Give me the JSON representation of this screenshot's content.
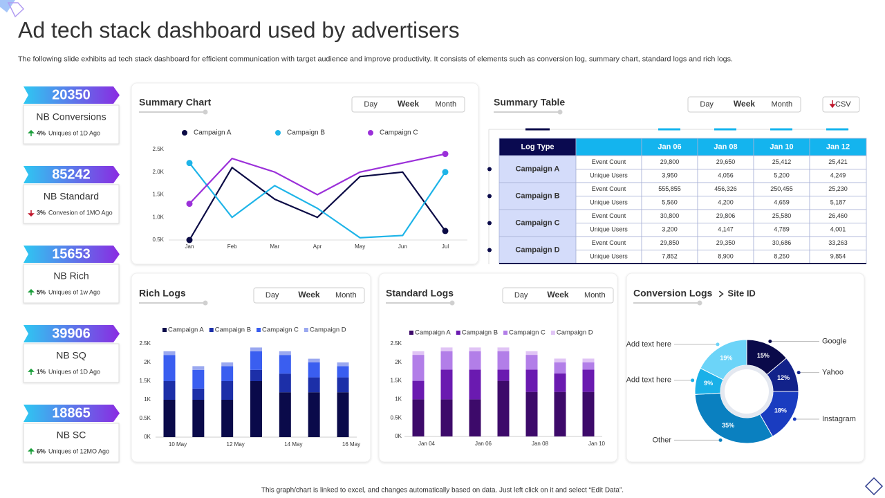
{
  "header": {
    "title": "Ad tech stack dashboard used by advertisers",
    "subtitle": "The following slide exhibits ad tech stack dashboard for efficient communication with target audience and improve productivity. It consists of elements such as conversion log, summary chart, standard logs and rich logs."
  },
  "kpis": [
    {
      "value": 20350,
      "label": "NB Conversions",
      "change": "4%",
      "note": "Uniques of 1D Ago",
      "trend": "up"
    },
    {
      "value": 85242,
      "label": "NB Standard",
      "change": "3%",
      "note": "Convesion of 1MO Ago",
      "trend": "down"
    },
    {
      "value": 15653,
      "label": "NB Rich",
      "change": "5%",
      "note": "Uniques of 1w Ago",
      "trend": "up"
    },
    {
      "value": 39906,
      "label": "NB SQ",
      "change": "1%",
      "note": "Uniques of 1D Ago",
      "trend": "up"
    },
    {
      "value": 18865,
      "label": "NB SC",
      "change": "6%",
      "note": "Uniques of 12MO Ago",
      "trend": "up"
    }
  ],
  "chart_data": [
    {
      "type": "line",
      "title": "Summary Chart",
      "toggle": [
        "Day",
        "Week",
        "Month"
      ],
      "categories": [
        "Jan",
        "Feb",
        "Mar",
        "Apr",
        "May",
        "Jun",
        "Jul"
      ],
      "series": [
        {
          "name": "Campaign A",
          "color": "#0b0b45",
          "values": [
            0.5,
            2.1,
            1.4,
            1.0,
            1.9,
            2.0,
            0.7
          ]
        },
        {
          "name": "Campaign B",
          "color": "#1eb4e8",
          "values": [
            2.2,
            1.0,
            1.7,
            1.2,
            0.55,
            0.6,
            2.0
          ]
        },
        {
          "name": "Campaign C",
          "color": "#9b30d9",
          "values": [
            1.3,
            2.3,
            2.0,
            1.5,
            2.0,
            2.2,
            2.4
          ]
        }
      ],
      "ylim": [
        0.5,
        2.5
      ],
      "yticks": [
        {
          "value": 0.5,
          "label": "0.5K"
        },
        {
          "value": 1.0,
          "label": "1.0K"
        },
        {
          "value": 1.5,
          "label": "1.5K"
        },
        {
          "value": 2.0,
          "label": "2.0K"
        },
        {
          "value": 2.5,
          "label": "2.5K"
        }
      ]
    },
    {
      "type": "stacked_bar",
      "title": "Rich Logs",
      "toggle": [
        "Day",
        "Week",
        "Month"
      ],
      "categories": [
        "10 May",
        null,
        "12 May",
        null,
        "14 May",
        null,
        "16 May"
      ],
      "series": [
        {
          "name": "Campaign  A",
          "color": "#0a0a4a",
          "values": [
            1.0,
            1.0,
            1.0,
            1.5,
            1.2,
            1.2,
            1.2
          ]
        },
        {
          "name": "Campaign  B",
          "color": "#1c2fa8",
          "values": [
            0.5,
            0.3,
            0.5,
            0.3,
            0.5,
            0.4,
            0.4
          ]
        },
        {
          "name": "Campaign C",
          "color": "#3a5ef0",
          "values": [
            0.7,
            0.5,
            0.4,
            0.5,
            0.5,
            0.4,
            0.3
          ]
        },
        {
          "name": "Campaign D",
          "color": "#9aa8f0",
          "values": [
            0.1,
            0.1,
            0.1,
            0.1,
            0.1,
            0.1,
            0.1
          ]
        }
      ],
      "ylim": [
        0,
        2.5
      ],
      "yticks": [
        {
          "value": 0,
          "label": "0K"
        },
        {
          "value": 0.5,
          "label": "0.5K"
        },
        {
          "value": 1,
          "label": "1K"
        },
        {
          "value": 1.5,
          "label": "1.5K"
        },
        {
          "value": 2,
          "label": "2K"
        },
        {
          "value": 2.5,
          "label": "2.5K"
        }
      ]
    },
    {
      "type": "stacked_bar",
      "title": "Standard Logs",
      "toggle": [
        "Day",
        "Week",
        "Month"
      ],
      "categories": [
        "Jan 04",
        null,
        "Jan 06",
        null,
        "Jan 08",
        null,
        "Jan 10"
      ],
      "series": [
        {
          "name": "Campaign  A",
          "color": "#3d0a6a",
          "values": [
            1.0,
            1.0,
            1.0,
            1.5,
            1.2,
            1.2,
            1.2
          ]
        },
        {
          "name": "Campaign  B",
          "color": "#6a1ab0",
          "values": [
            0.5,
            0.8,
            0.8,
            0.3,
            0.6,
            0.5,
            0.6
          ]
        },
        {
          "name": "Campaign C",
          "color": "#b27ee8",
          "values": [
            0.7,
            0.5,
            0.5,
            0.5,
            0.4,
            0.3,
            0.2
          ]
        },
        {
          "name": "Campaign D",
          "color": "#e0c4f5",
          "values": [
            0.1,
            0.1,
            0.1,
            0.1,
            0.1,
            0.1,
            0.1
          ]
        }
      ],
      "ylim": [
        0,
        2.5
      ],
      "yticks": [
        {
          "value": 0,
          "label": "0K"
        },
        {
          "value": 0.5,
          "label": "0.5K"
        },
        {
          "value": 1,
          "label": "1K"
        },
        {
          "value": 1.5,
          "label": "1.5K"
        },
        {
          "value": 2,
          "label": "2K"
        },
        {
          "value": 2.5,
          "label": "2.5K"
        }
      ]
    },
    {
      "type": "pie",
      "title": "Conversion Logs",
      "subtitle": "Site ID",
      "categories": [
        "Google",
        "Yahoo",
        "Instagram",
        "Other",
        "Add text here",
        "Add text here"
      ],
      "values": [
        15,
        12,
        18,
        35,
        9,
        19
      ],
      "value_labels": [
        "15%",
        "12%",
        "18%",
        "35%",
        "9%",
        "19%"
      ],
      "colors": [
        "#0a0a4a",
        "#12228a",
        "#1a3cc0",
        "#0a80c0",
        "#1ab0e8",
        "#6cd4f8"
      ]
    }
  ],
  "table": {
    "title": "Summary Table",
    "toggle": [
      "Day",
      "Week",
      "Month"
    ],
    "button": "CSV",
    "columns": [
      "Log Type",
      "Jan 06",
      "Jan 08",
      "Jan 10",
      "Jan 12"
    ],
    "rows": [
      {
        "name": "Campaign A",
        "metrics": [
          {
            "name": "Event Count",
            "values": [
              "29,800",
              "29,650",
              "25,412",
              "25,421"
            ]
          },
          {
            "name": "Unique Users",
            "values": [
              "3,950",
              "4,056",
              "5,200",
              "4,249"
            ]
          }
        ]
      },
      {
        "name": "Campaign B",
        "metrics": [
          {
            "name": "Event Count",
            "values": [
              "555,855",
              "456,326",
              "250,455",
              "25,230"
            ]
          },
          {
            "name": "Unique Users",
            "values": [
              "5,560",
              "4,200",
              "4,659",
              "5,187"
            ]
          }
        ]
      },
      {
        "name": "Campaign C",
        "metrics": [
          {
            "name": "Event Count",
            "values": [
              "30,800",
              "29,806",
              "25,580",
              "26,460"
            ]
          },
          {
            "name": "Unique Users",
            "values": [
              "3,200",
              "4,147",
              "4,789",
              "4,001"
            ]
          }
        ]
      },
      {
        "name": "Campaign D",
        "metrics": [
          {
            "name": "Event Count",
            "values": [
              "29,850",
              "29,350",
              "30,686",
              "33,263"
            ]
          },
          {
            "name": "Unique Users",
            "values": [
              "7,852",
              "8,900",
              "8,250",
              "9,854"
            ]
          }
        ]
      }
    ]
  },
  "footer": "This graph/chart is linked to excel, and changes automatically based on data. Just left click on it and select “Edit Data”."
}
